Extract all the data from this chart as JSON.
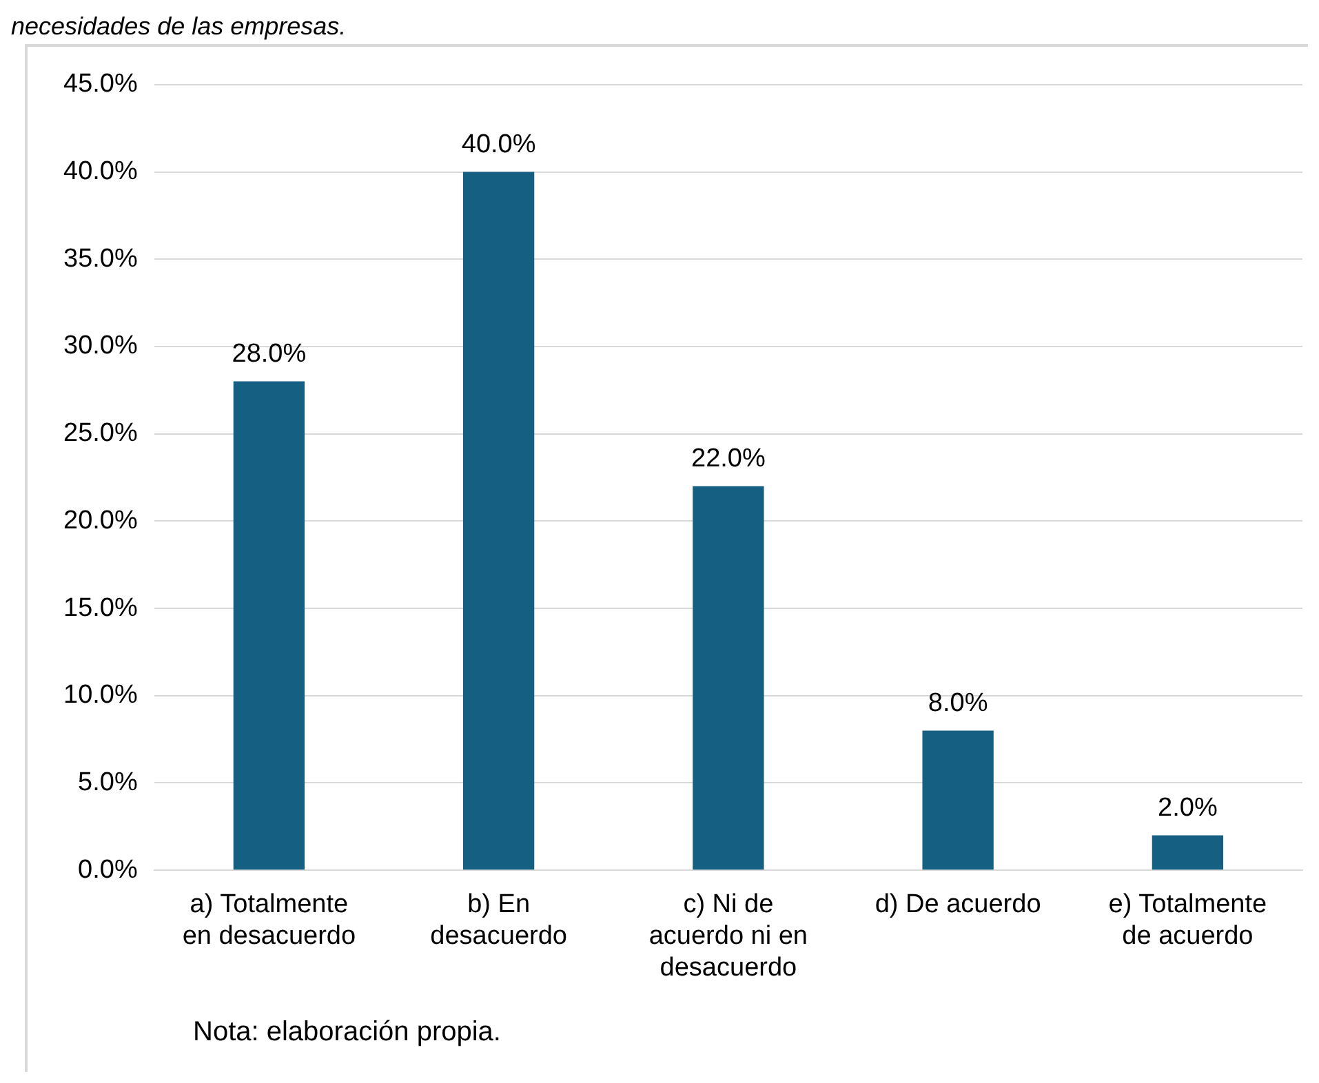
{
  "chart_data": {
    "type": "bar",
    "title": "necesidades de las empresas.",
    "categories": [
      "a) Totalmente en desacuerdo",
      "b) En desacuerdo",
      "c) Ni de acuerdo ni en desacuerdo",
      "d) De acuerdo",
      "e) Totalmente de acuerdo"
    ],
    "values": [
      28.0,
      40.0,
      22.0,
      8.0,
      2.0
    ],
    "color": "#156082",
    "ylim": [
      0,
      45
    ],
    "yticks": [
      {
        "value": 0,
        "label": "0.0%"
      },
      {
        "value": 5,
        "label": "5.0%"
      },
      {
        "value": 10,
        "label": "10.0%"
      },
      {
        "value": 15,
        "label": "15.0%"
      },
      {
        "value": 20,
        "label": "20.0%"
      },
      {
        "value": 25,
        "label": "25.0%"
      },
      {
        "value": 30,
        "label": "30.0%"
      },
      {
        "value": 35,
        "label": "35.0%"
      },
      {
        "value": 40,
        "label": "40.0%"
      },
      {
        "value": 45,
        "label": "45.0%"
      }
    ],
    "grid": "y",
    "legend": false,
    "data_labels": true,
    "value_labels": [
      "28.0%",
      "40.0%",
      "22.0%",
      "8.0%",
      "2.0%"
    ],
    "annotations": [
      "Nota: elaboración propia."
    ]
  }
}
